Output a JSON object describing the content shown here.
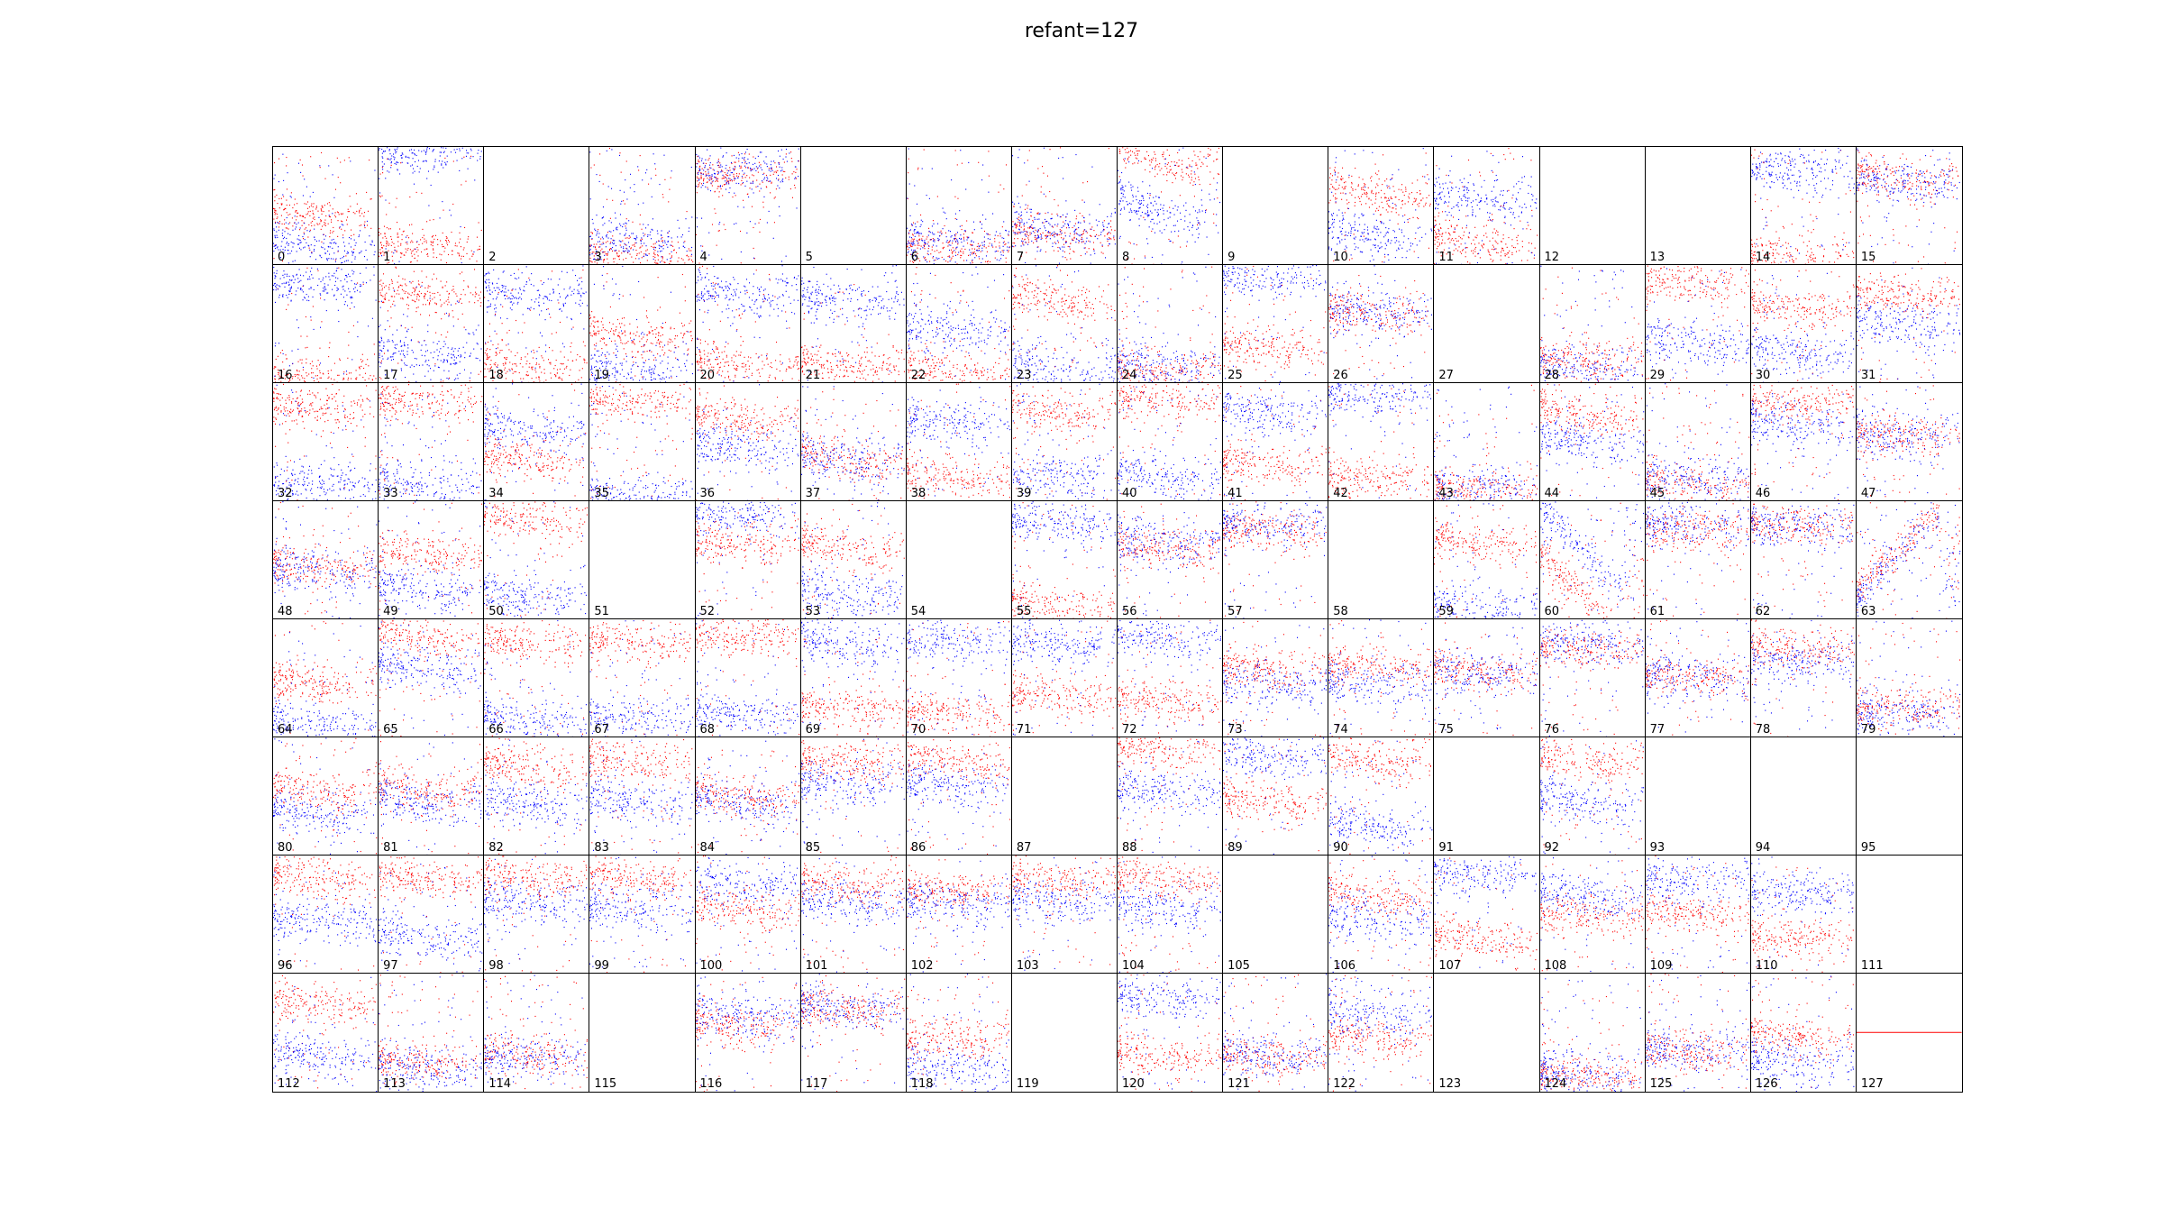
{
  "title": "refant=127",
  "colors": {
    "series_a": "#ff0000",
    "series_b": "#0000ff",
    "frame": "#000000"
  },
  "chart_data": {
    "type": "scatter",
    "title": "refant=127",
    "layout": {
      "rows": 8,
      "cols": 16
    },
    "series": [
      {
        "color": "#ff0000"
      },
      {
        "color": "#0000ff"
      }
    ],
    "empty_panels": [
      2,
      5,
      9,
      12,
      13,
      27,
      51,
      54,
      58,
      87,
      91,
      93,
      94,
      95,
      105,
      111,
      115,
      119,
      123
    ],
    "reference_panel": 127,
    "panels": [
      {
        "label": "0",
        "red_center": 0.6,
        "blue_center": 0.85,
        "slope": 0.15
      },
      {
        "label": "1",
        "red_center": 0.85,
        "blue_center": 0.05,
        "slope": 0.05
      },
      {
        "label": "2"
      },
      {
        "label": "3",
        "red_center": 0.9,
        "blue_center": 0.8,
        "slope": 0.05
      },
      {
        "label": "4",
        "red_center": 0.25,
        "blue_center": 0.2,
        "slope": 0.05
      },
      {
        "label": "5"
      },
      {
        "label": "6",
        "red_center": 0.85,
        "blue_center": 0.8,
        "slope": 0.05
      },
      {
        "label": "7",
        "red_center": 0.75,
        "blue_center": 0.7,
        "slope": 0.08
      },
      {
        "label": "8",
        "red_center": 0.1,
        "blue_center": 0.55,
        "slope": 0.35
      },
      {
        "label": "9"
      },
      {
        "label": "10",
        "red_center": 0.4,
        "blue_center": 0.75,
        "slope": 0.2
      },
      {
        "label": "11",
        "red_center": 0.8,
        "blue_center": 0.45,
        "slope": 0.15
      },
      {
        "label": "12"
      },
      {
        "label": "13"
      },
      {
        "label": "14",
        "red_center": 0.95,
        "blue_center": 0.2,
        "slope": 0.1
      },
      {
        "label": "15",
        "red_center": 0.25,
        "blue_center": 0.3,
        "slope": 0.1
      },
      {
        "label": "16",
        "red_center": 0.95,
        "blue_center": 0.15,
        "slope": 0.1
      },
      {
        "label": "17",
        "red_center": 0.25,
        "blue_center": 0.75,
        "slope": 0.15
      },
      {
        "label": "18",
        "red_center": 0.85,
        "blue_center": 0.25,
        "slope": 0.1
      },
      {
        "label": "19",
        "red_center": 0.6,
        "blue_center": 0.9,
        "slope": 0.15
      },
      {
        "label": "20",
        "red_center": 0.85,
        "blue_center": 0.25,
        "slope": 0.15
      },
      {
        "label": "21",
        "red_center": 0.85,
        "blue_center": 0.3,
        "slope": 0.1
      },
      {
        "label": "22",
        "red_center": 0.9,
        "blue_center": 0.55,
        "slope": 0.1
      },
      {
        "label": "23",
        "red_center": 0.3,
        "blue_center": 0.9,
        "slope": 0.2
      },
      {
        "label": "24",
        "red_center": 0.9,
        "blue_center": 0.85,
        "slope": 0.05
      },
      {
        "label": "25",
        "red_center": 0.7,
        "blue_center": 0.1,
        "slope": 0.1
      },
      {
        "label": "26",
        "red_center": 0.4,
        "blue_center": 0.4,
        "slope": 0.1
      },
      {
        "label": "27"
      },
      {
        "label": "28",
        "red_center": 0.8,
        "blue_center": 0.9,
        "slope": 0.1
      },
      {
        "label": "29",
        "red_center": 0.15,
        "blue_center": 0.65,
        "slope": 0.1
      },
      {
        "label": "30",
        "red_center": 0.35,
        "blue_center": 0.75,
        "slope": 0.1
      },
      {
        "label": "31",
        "red_center": 0.25,
        "blue_center": 0.5,
        "slope": 0.1
      },
      {
        "label": "32",
        "red_center": 0.2,
        "blue_center": 0.85,
        "slope": 0.05
      },
      {
        "label": "33",
        "red_center": 0.15,
        "blue_center": 0.85,
        "slope": 0.05
      },
      {
        "label": "34",
        "red_center": 0.65,
        "blue_center": 0.4,
        "slope": 0.1
      },
      {
        "label": "35",
        "red_center": 0.15,
        "blue_center": 0.95,
        "slope": 0.05
      },
      {
        "label": "36",
        "red_center": 0.3,
        "blue_center": 0.55,
        "slope": 0.1
      },
      {
        "label": "37",
        "red_center": 0.65,
        "blue_center": 0.65,
        "slope": 0.15
      },
      {
        "label": "38",
        "red_center": 0.8,
        "blue_center": 0.35,
        "slope": 0.1
      },
      {
        "label": "39",
        "red_center": 0.25,
        "blue_center": 0.8,
        "slope": 0.1
      },
      {
        "label": "40",
        "red_center": 0.15,
        "blue_center": 0.8,
        "slope": 0.1
      },
      {
        "label": "41",
        "red_center": 0.7,
        "blue_center": 0.25,
        "slope": 0.1
      },
      {
        "label": "42",
        "red_center": 0.8,
        "blue_center": 0.1,
        "slope": 0.05
      },
      {
        "label": "43",
        "red_center": 0.9,
        "blue_center": 0.9,
        "slope": 0.05
      },
      {
        "label": "44",
        "red_center": 0.25,
        "blue_center": 0.5,
        "slope": 0.15
      },
      {
        "label": "45",
        "red_center": 0.85,
        "blue_center": 0.8,
        "slope": 0.1
      },
      {
        "label": "46",
        "red_center": 0.15,
        "blue_center": 0.35,
        "slope": 0.05
      },
      {
        "label": "47",
        "red_center": 0.45,
        "blue_center": 0.45,
        "slope": 0.05
      },
      {
        "label": "48",
        "red_center": 0.55,
        "blue_center": 0.6,
        "slope": 0.1
      },
      {
        "label": "49",
        "red_center": 0.45,
        "blue_center": 0.75,
        "slope": 0.1
      },
      {
        "label": "50",
        "red_center": 0.15,
        "blue_center": 0.8,
        "slope": 0.1
      },
      {
        "label": "51"
      },
      {
        "label": "52",
        "red_center": 0.35,
        "blue_center": 0.1,
        "slope": 0.05
      },
      {
        "label": "53",
        "red_center": 0.4,
        "blue_center": 0.8,
        "slope": 0.1
      },
      {
        "label": "54"
      },
      {
        "label": "55",
        "red_center": 0.9,
        "blue_center": 0.2,
        "slope": 0.1
      },
      {
        "label": "56",
        "red_center": 0.4,
        "blue_center": 0.35,
        "slope": 0.1
      },
      {
        "label": "57",
        "red_center": 0.25,
        "blue_center": 0.2,
        "slope": 0.1
      },
      {
        "label": "58"
      },
      {
        "label": "59",
        "red_center": 0.35,
        "blue_center": 0.9,
        "slope": 0.1
      },
      {
        "label": "60",
        "red_center": 0.8,
        "blue_center": 0.4,
        "slope": 0.9
      },
      {
        "label": "61",
        "red_center": 0.25,
        "blue_center": 0.2,
        "slope": 0.05
      },
      {
        "label": "62",
        "red_center": 0.2,
        "blue_center": 0.2,
        "slope": 0.05
      },
      {
        "label": "63",
        "red_center": 0.4,
        "blue_center": 0.45,
        "slope": -0.9
      },
      {
        "label": "64",
        "red_center": 0.55,
        "blue_center": 0.9,
        "slope": 0.1
      },
      {
        "label": "65",
        "red_center": 0.15,
        "blue_center": 0.4,
        "slope": 0.1
      },
      {
        "label": "66",
        "red_center": 0.2,
        "blue_center": 0.85,
        "slope": 0.05
      },
      {
        "label": "67",
        "red_center": 0.2,
        "blue_center": 0.85,
        "slope": 0.05
      },
      {
        "label": "68",
        "red_center": 0.15,
        "blue_center": 0.8,
        "slope": 0.05
      },
      {
        "label": "69",
        "red_center": 0.75,
        "blue_center": 0.2,
        "slope": 0.1
      },
      {
        "label": "70",
        "red_center": 0.8,
        "blue_center": 0.2,
        "slope": 0.1
      },
      {
        "label": "71",
        "red_center": 0.65,
        "blue_center": 0.2,
        "slope": 0.1
      },
      {
        "label": "72",
        "red_center": 0.7,
        "blue_center": 0.15,
        "slope": 0.1
      },
      {
        "label": "73",
        "red_center": 0.4,
        "blue_center": 0.55,
        "slope": 0.05
      },
      {
        "label": "74",
        "red_center": 0.4,
        "blue_center": 0.55,
        "slope": 0.05
      },
      {
        "label": "75",
        "red_center": 0.45,
        "blue_center": 0.45,
        "slope": 0.05
      },
      {
        "label": "76",
        "red_center": 0.25,
        "blue_center": 0.2,
        "slope": 0.05
      },
      {
        "label": "77",
        "red_center": 0.5,
        "blue_center": 0.5,
        "slope": 0.05
      },
      {
        "label": "78",
        "red_center": 0.25,
        "blue_center": 0.35,
        "slope": 0.05
      },
      {
        "label": "79",
        "red_center": 0.75,
        "blue_center": 0.8,
        "slope": 0.05
      },
      {
        "label": "80",
        "red_center": 0.45,
        "blue_center": 0.65,
        "slope": 0.15
      },
      {
        "label": "81",
        "red_center": 0.45,
        "blue_center": 0.55,
        "slope": 0.15
      },
      {
        "label": "82",
        "red_center": 0.25,
        "blue_center": 0.55,
        "slope": 0.15
      },
      {
        "label": "83",
        "red_center": 0.2,
        "blue_center": 0.55,
        "slope": 0.15
      },
      {
        "label": "84",
        "red_center": 0.5,
        "blue_center": 0.55,
        "slope": 0.15
      },
      {
        "label": "85",
        "red_center": 0.2,
        "blue_center": 0.4,
        "slope": 0.1
      },
      {
        "label": "86",
        "red_center": 0.2,
        "blue_center": 0.4,
        "slope": 0.1
      },
      {
        "label": "87"
      },
      {
        "label": "88",
        "red_center": 0.1,
        "blue_center": 0.45,
        "slope": 0.1
      },
      {
        "label": "89",
        "red_center": 0.55,
        "blue_center": 0.15,
        "slope": 0.1
      },
      {
        "label": "90",
        "red_center": 0.2,
        "blue_center": 0.75,
        "slope": 0.15
      },
      {
        "label": "91"
      },
      {
        "label": "92",
        "red_center": 0.2,
        "blue_center": 0.55,
        "slope": 0.15
      },
      {
        "label": "93"
      },
      {
        "label": "94"
      },
      {
        "label": "95"
      },
      {
        "label": "96",
        "red_center": 0.2,
        "blue_center": 0.55,
        "slope": 0.1
      },
      {
        "label": "97",
        "red_center": 0.2,
        "blue_center": 0.7,
        "slope": 0.1
      },
      {
        "label": "98",
        "red_center": 0.2,
        "blue_center": 0.4,
        "slope": 0.1
      },
      {
        "label": "99",
        "red_center": 0.2,
        "blue_center": 0.45,
        "slope": 0.1
      },
      {
        "label": "100",
        "red_center": 0.45,
        "blue_center": 0.25,
        "slope": 0.1
      },
      {
        "label": "101",
        "red_center": 0.25,
        "blue_center": 0.4,
        "slope": 0.1
      },
      {
        "label": "102",
        "red_center": 0.3,
        "blue_center": 0.4,
        "slope": 0.1
      },
      {
        "label": "103",
        "red_center": 0.2,
        "blue_center": 0.4,
        "slope": 0.1
      },
      {
        "label": "104",
        "red_center": 0.2,
        "blue_center": 0.45,
        "slope": 0.1
      },
      {
        "label": "105"
      },
      {
        "label": "106",
        "red_center": 0.35,
        "blue_center": 0.55,
        "slope": 0.1
      },
      {
        "label": "107",
        "red_center": 0.7,
        "blue_center": 0.15,
        "slope": 0.05
      },
      {
        "label": "108",
        "red_center": 0.5,
        "blue_center": 0.35,
        "slope": 0.1
      },
      {
        "label": "109",
        "red_center": 0.5,
        "blue_center": 0.2,
        "slope": 0.05
      },
      {
        "label": "110",
        "red_center": 0.7,
        "blue_center": 0.3,
        "slope": 0.05
      },
      {
        "label": "111"
      },
      {
        "label": "112",
        "red_center": 0.25,
        "blue_center": 0.7,
        "slope": 0.1
      },
      {
        "label": "113",
        "red_center": 0.75,
        "blue_center": 0.8,
        "slope": 0.05
      },
      {
        "label": "114",
        "red_center": 0.7,
        "blue_center": 0.7,
        "slope": 0.05
      },
      {
        "label": "115"
      },
      {
        "label": "116",
        "red_center": 0.45,
        "blue_center": 0.35,
        "slope": 0.1
      },
      {
        "label": "117",
        "red_center": 0.3,
        "blue_center": 0.3,
        "slope": 0.1
      },
      {
        "label": "118",
        "red_center": 0.55,
        "blue_center": 0.8,
        "slope": 0.05
      },
      {
        "label": "119"
      },
      {
        "label": "120",
        "red_center": 0.7,
        "blue_center": 0.2,
        "slope": 0.1
      },
      {
        "label": "121",
        "red_center": 0.7,
        "blue_center": 0.7,
        "slope": 0.05
      },
      {
        "label": "122",
        "red_center": 0.55,
        "blue_center": 0.35,
        "slope": 0.05
      },
      {
        "label": "123"
      },
      {
        "label": "124",
        "red_center": 0.85,
        "blue_center": 0.85,
        "slope": 0.05
      },
      {
        "label": "125",
        "red_center": 0.65,
        "blue_center": 0.65,
        "slope": 0.05
      },
      {
        "label": "126",
        "red_center": 0.55,
        "blue_center": 0.75,
        "slope": 0.1
      },
      {
        "label": "127",
        "reference_line": 0.5
      }
    ]
  }
}
